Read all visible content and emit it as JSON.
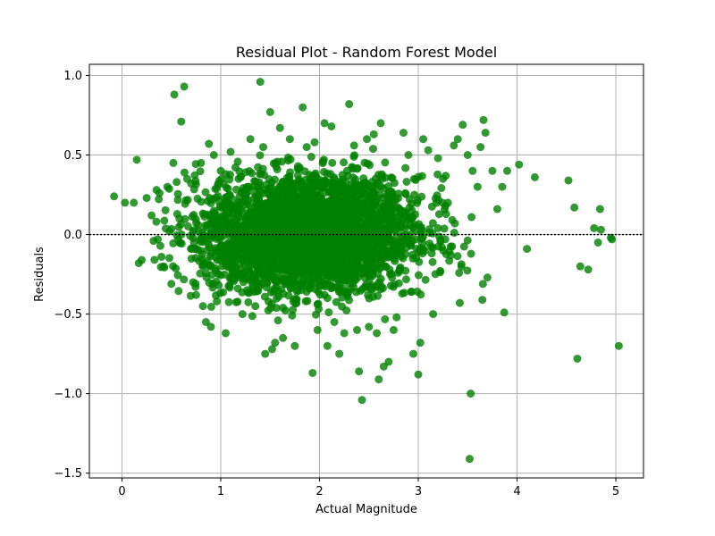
{
  "chart_data": {
    "type": "scatter",
    "title": "Residual Plot - Random Forest Model",
    "xlabel": "Actual Magnitude",
    "ylabel": "Residuals",
    "xlim": [
      -0.33,
      5.28
    ],
    "ylim": [
      -1.53,
      1.07
    ],
    "xticks": [
      0,
      1,
      2,
      3,
      4,
      5
    ],
    "yticks": [
      -1.5,
      -1.0,
      -0.5,
      0.0,
      0.5,
      1.0
    ],
    "ytick_labels": [
      "−1.5",
      "−1.0",
      "−0.5",
      "0.0",
      "0.5",
      "1.0"
    ],
    "grid": true,
    "reference_line": {
      "y": 0,
      "style": "dotted",
      "color": "#000000"
    },
    "point_color": "#008000",
    "point_alpha": 0.8,
    "series": [
      {
        "points": [
          [
            -0.08,
            0.24
          ],
          [
            0.03,
            0.2
          ],
          [
            0.12,
            0.2
          ],
          [
            0.15,
            0.47
          ],
          [
            0.17,
            -0.18
          ],
          [
            0.2,
            -0.16
          ],
          [
            0.25,
            0.23
          ],
          [
            0.3,
            0.12
          ],
          [
            0.32,
            -0.04
          ],
          [
            0.35,
            0.28
          ],
          [
            0.38,
            0.26
          ],
          [
            0.4,
            -0.14
          ],
          [
            0.42,
            -0.2
          ],
          [
            0.46,
            0.3
          ],
          [
            0.5,
            -0.31
          ],
          [
            0.52,
            0.45
          ],
          [
            0.53,
            0.88
          ],
          [
            0.6,
            0.71
          ],
          [
            0.63,
            0.93
          ],
          [
            0.66,
            0.35
          ],
          [
            0.7,
            0.32
          ],
          [
            0.72,
            -0.3
          ],
          [
            0.75,
            -0.38
          ],
          [
            0.8,
            0.45
          ],
          [
            0.82,
            -0.45
          ],
          [
            0.85,
            -0.55
          ],
          [
            0.88,
            0.57
          ],
          [
            0.9,
            -0.58
          ],
          [
            0.93,
            0.5
          ],
          [
            0.96,
            -0.42
          ],
          [
            1.0,
            0.4
          ],
          [
            1.05,
            -0.62
          ],
          [
            1.1,
            0.52
          ],
          [
            1.18,
            0.35
          ],
          [
            1.22,
            -0.5
          ],
          [
            1.3,
            0.6
          ],
          [
            1.35,
            -0.45
          ],
          [
            1.4,
            0.96
          ],
          [
            1.43,
            0.55
          ],
          [
            1.45,
            -0.75
          ],
          [
            1.5,
            0.77
          ],
          [
            1.52,
            -0.72
          ],
          [
            1.55,
            -0.68
          ],
          [
            1.6,
            0.67
          ],
          [
            1.63,
            -0.65
          ],
          [
            1.7,
            0.6
          ],
          [
            1.75,
            -0.7
          ],
          [
            1.8,
            0.42
          ],
          [
            1.83,
            0.8
          ],
          [
            1.87,
            0.55
          ],
          [
            1.93,
            -0.87
          ],
          [
            1.95,
            0.58
          ],
          [
            1.98,
            -0.6
          ],
          [
            2.05,
            0.7
          ],
          [
            2.08,
            -0.7
          ],
          [
            2.12,
            0.68
          ],
          [
            2.15,
            -0.55
          ],
          [
            2.2,
            -0.75
          ],
          [
            2.25,
            -0.62
          ],
          [
            2.3,
            0.82
          ],
          [
            2.35,
            0.56
          ],
          [
            2.38,
            -0.6
          ],
          [
            2.4,
            -0.86
          ],
          [
            2.43,
            -1.04
          ],
          [
            2.48,
            0.6
          ],
          [
            2.5,
            -0.58
          ],
          [
            2.55,
            0.63
          ],
          [
            2.58,
            -0.62
          ],
          [
            2.6,
            -0.91
          ],
          [
            2.62,
            0.7
          ],
          [
            2.65,
            -0.83
          ],
          [
            2.7,
            -0.8
          ],
          [
            2.75,
            -0.6
          ],
          [
            2.78,
            -0.52
          ],
          [
            2.85,
            0.64
          ],
          [
            2.9,
            0.5
          ],
          [
            2.95,
            -0.75
          ],
          [
            3.0,
            -0.88
          ],
          [
            3.02,
            -0.68
          ],
          [
            3.05,
            0.6
          ],
          [
            3.1,
            0.53
          ],
          [
            3.15,
            -0.5
          ],
          [
            3.2,
            0.48
          ],
          [
            3.25,
            0.35
          ],
          [
            3.3,
            0.2
          ],
          [
            3.33,
            -0.13
          ],
          [
            3.36,
            0.56
          ],
          [
            3.4,
            0.6
          ],
          [
            3.42,
            -0.43
          ],
          [
            3.45,
            0.69
          ],
          [
            3.5,
            0.5
          ],
          [
            3.53,
            -1.0
          ],
          [
            3.52,
            -1.41
          ],
          [
            3.55,
            0.4
          ],
          [
            3.6,
            0.3
          ],
          [
            3.63,
            0.55
          ],
          [
            3.66,
            0.72
          ],
          [
            3.68,
            0.64
          ],
          [
            3.7,
            -0.27
          ],
          [
            3.75,
            0.4
          ],
          [
            3.8,
            0.16
          ],
          [
            3.85,
            0.3
          ],
          [
            3.87,
            -0.49
          ],
          [
            3.9,
            0.4
          ],
          [
            4.02,
            0.44
          ],
          [
            4.1,
            -0.09
          ],
          [
            4.18,
            0.36
          ],
          [
            4.52,
            0.34
          ],
          [
            4.58,
            0.17
          ],
          [
            4.61,
            -0.78
          ],
          [
            4.64,
            -0.2
          ],
          [
            4.72,
            -0.22
          ],
          [
            4.78,
            0.04
          ],
          [
            4.82,
            -0.05
          ],
          [
            4.84,
            0.16
          ],
          [
            4.85,
            0.03
          ],
          [
            4.95,
            -0.02
          ],
          [
            4.96,
            -0.03
          ],
          [
            5.03,
            -0.7
          ]
        ],
        "cluster": {
          "x_center": 1.9,
          "x_spread": 0.55,
          "y_spread": 0.18,
          "count": 3200
        }
      }
    ]
  }
}
